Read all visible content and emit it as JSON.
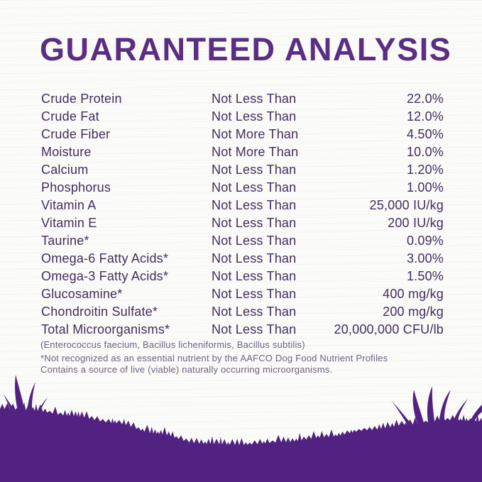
{
  "page": {
    "title": "GUARANTEED ANALYSIS"
  },
  "table": {
    "rows": [
      {
        "nutrient": "Crude Protein",
        "qualifier": "Not Less Than",
        "value": "22.0%"
      },
      {
        "nutrient": "Crude Fat",
        "qualifier": "Not Less Than",
        "value": "12.0%"
      },
      {
        "nutrient": "Crude Fiber",
        "qualifier": "Not More Than",
        "value": "4.50%"
      },
      {
        "nutrient": "Moisture",
        "qualifier": "Not More Than",
        "value": "10.0%"
      },
      {
        "nutrient": "Calcium",
        "qualifier": "Not Less Than",
        "value": "1.20%"
      },
      {
        "nutrient": "Phosphorus",
        "qualifier": "Not Less Than",
        "value": "1.00%"
      },
      {
        "nutrient": "Vitamin A",
        "qualifier": "Not Less Than",
        "value": "25,000 IU/kg"
      },
      {
        "nutrient": "Vitamin E",
        "qualifier": "Not Less Than",
        "value": "200 IU/kg"
      },
      {
        "nutrient": "Taurine*",
        "qualifier": "Not Less Than",
        "value": "0.09%"
      },
      {
        "nutrient": "Omega-6 Fatty Acids*",
        "qualifier": "Not Less Than",
        "value": "3.00%"
      },
      {
        "nutrient": "Omega-3 Fatty Acids*",
        "qualifier": "Not Less Than",
        "value": "1.50%"
      },
      {
        "nutrient": "Glucosamine*",
        "qualifier": "Not Less Than",
        "value": "400 mg/kg"
      },
      {
        "nutrient": "Chondroitin Sulfate*",
        "qualifier": "Not Less Than",
        "value": "200 mg/kg"
      },
      {
        "nutrient": "Total Microorganisms*",
        "qualifier": "Not Less Than",
        "value": "20,000,000 CFU/lb"
      }
    ],
    "species_note": "(Enterococcus faecium, Bacillus licheniformis, Bacillus subtilis)"
  },
  "footnotes": {
    "line1": "*Not recognized as an essential nutrient by the AAFCO Dog Food Nutrient Profiles",
    "line2": "Contains a source of live (viable) naturally occurring microorganisms."
  },
  "colors": {
    "title_purple": "#5b2d84",
    "body_text_plum": "#432d5e",
    "footnote_gray_purple": "#6f6080",
    "grass_purple": "#522283",
    "background": "#fbfbf9"
  }
}
